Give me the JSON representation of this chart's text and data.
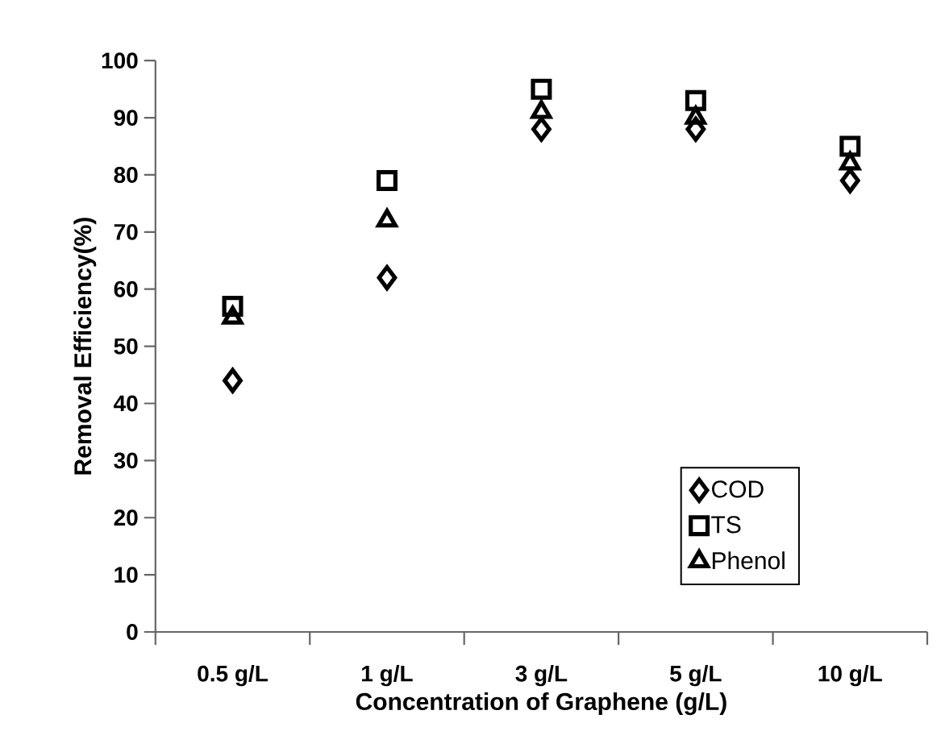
{
  "chart_data": {
    "type": "scatter",
    "xlabel": "Concentration of Graphene (g/L)",
    "ylabel": "Removal Efficiency(%)",
    "categories": [
      "0.5 g/L",
      "1 g/L",
      "3 g/L",
      "5 g/L",
      "10 g/L"
    ],
    "series": [
      {
        "name": "COD",
        "color": "#000000",
        "marker": "diamond",
        "values": [
          44,
          62,
          88,
          88,
          79
        ]
      },
      {
        "name": "TS",
        "color": "#000000",
        "marker": "square",
        "values": [
          57,
          79,
          95,
          93,
          85
        ]
      },
      {
        "name": "Phenol",
        "color": "#000000",
        "marker": "triangle",
        "values": [
          55,
          72,
          91,
          90,
          82
        ]
      }
    ],
    "ylim": [
      0,
      100
    ],
    "yticks": [
      0,
      10,
      20,
      30,
      40,
      50,
      60,
      70,
      80,
      90,
      100
    ],
    "grid": false,
    "legend": "bottom right"
  }
}
